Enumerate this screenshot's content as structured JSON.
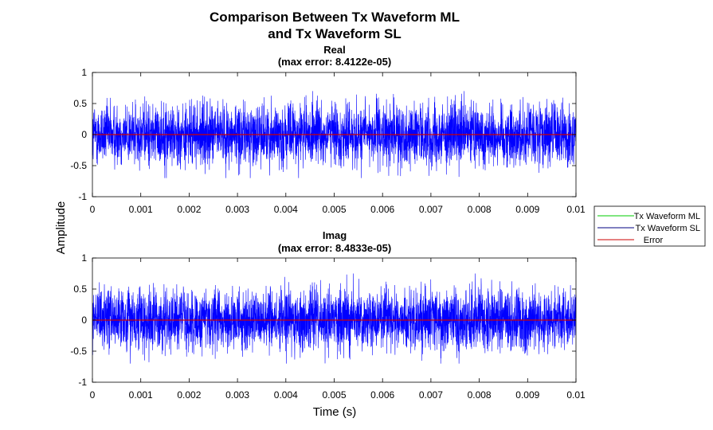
{
  "figure": {
    "title_line1": "Comparison Between Tx Waveform ML",
    "title_line2": "and Tx Waveform SL",
    "ylabel": "Amplitude",
    "xlabel": "Time (s)"
  },
  "legend": {
    "placement": "right",
    "entries": [
      {
        "label": "Tx Waveform ML",
        "color": "#00cc00"
      },
      {
        "label": "Tx Waveform SL",
        "color": "#000080"
      },
      {
        "label": "Error",
        "color": "#cc0000"
      }
    ]
  },
  "chart_data": [
    {
      "type": "line",
      "title": "Real",
      "subtitle": "(max error: 8.4122e-05)",
      "xlim": [
        0,
        0.01
      ],
      "ylim": [
        -1,
        1
      ],
      "xticks": [
        "0",
        "0.001",
        "0.002",
        "0.003",
        "0.004",
        "0.005",
        "0.006",
        "0.007",
        "0.008",
        "0.009",
        "0.01"
      ],
      "yticks": [
        "1",
        "0.5",
        "0",
        "-0.5",
        "-1"
      ],
      "signal": {
        "name": "Tx Waveform SL",
        "color": "#0000ff",
        "typical_envelope": 0.45,
        "peak_max": 0.7,
        "peak_min": -0.7,
        "mean": 0
      },
      "series": [
        {
          "name": "Tx Waveform ML",
          "color": "#00cc00",
          "note_values": "overlaid by SL"
        },
        {
          "name": "Tx Waveform SL",
          "color": "#0000ff"
        },
        {
          "name": "Error",
          "color": "#cc0000",
          "values_x": [
            0,
            0.01
          ],
          "values_y": [
            0,
            0
          ]
        }
      ]
    },
    {
      "type": "line",
      "title": "Imag",
      "subtitle": "(max error: 8.4833e-05)",
      "xlim": [
        0,
        0.01
      ],
      "ylim": [
        -1,
        1
      ],
      "xticks": [
        "0",
        "0.001",
        "0.002",
        "0.003",
        "0.004",
        "0.005",
        "0.006",
        "0.007",
        "0.008",
        "0.009",
        "0.01"
      ],
      "yticks": [
        "1",
        "0.5",
        "0",
        "-0.5",
        "-1"
      ],
      "signal": {
        "name": "Tx Waveform SL",
        "color": "#0000ff",
        "typical_envelope": 0.45,
        "peak_max": 0.75,
        "peak_min": -0.7,
        "mean": 0
      },
      "series": [
        {
          "name": "Tx Waveform ML",
          "color": "#00cc00",
          "note_values": "overlaid by SL"
        },
        {
          "name": "Tx Waveform SL",
          "color": "#0000ff"
        },
        {
          "name": "Error",
          "color": "#cc0000",
          "values_x": [
            0,
            0.01
          ],
          "values_y": [
            0,
            0
          ]
        }
      ]
    }
  ]
}
